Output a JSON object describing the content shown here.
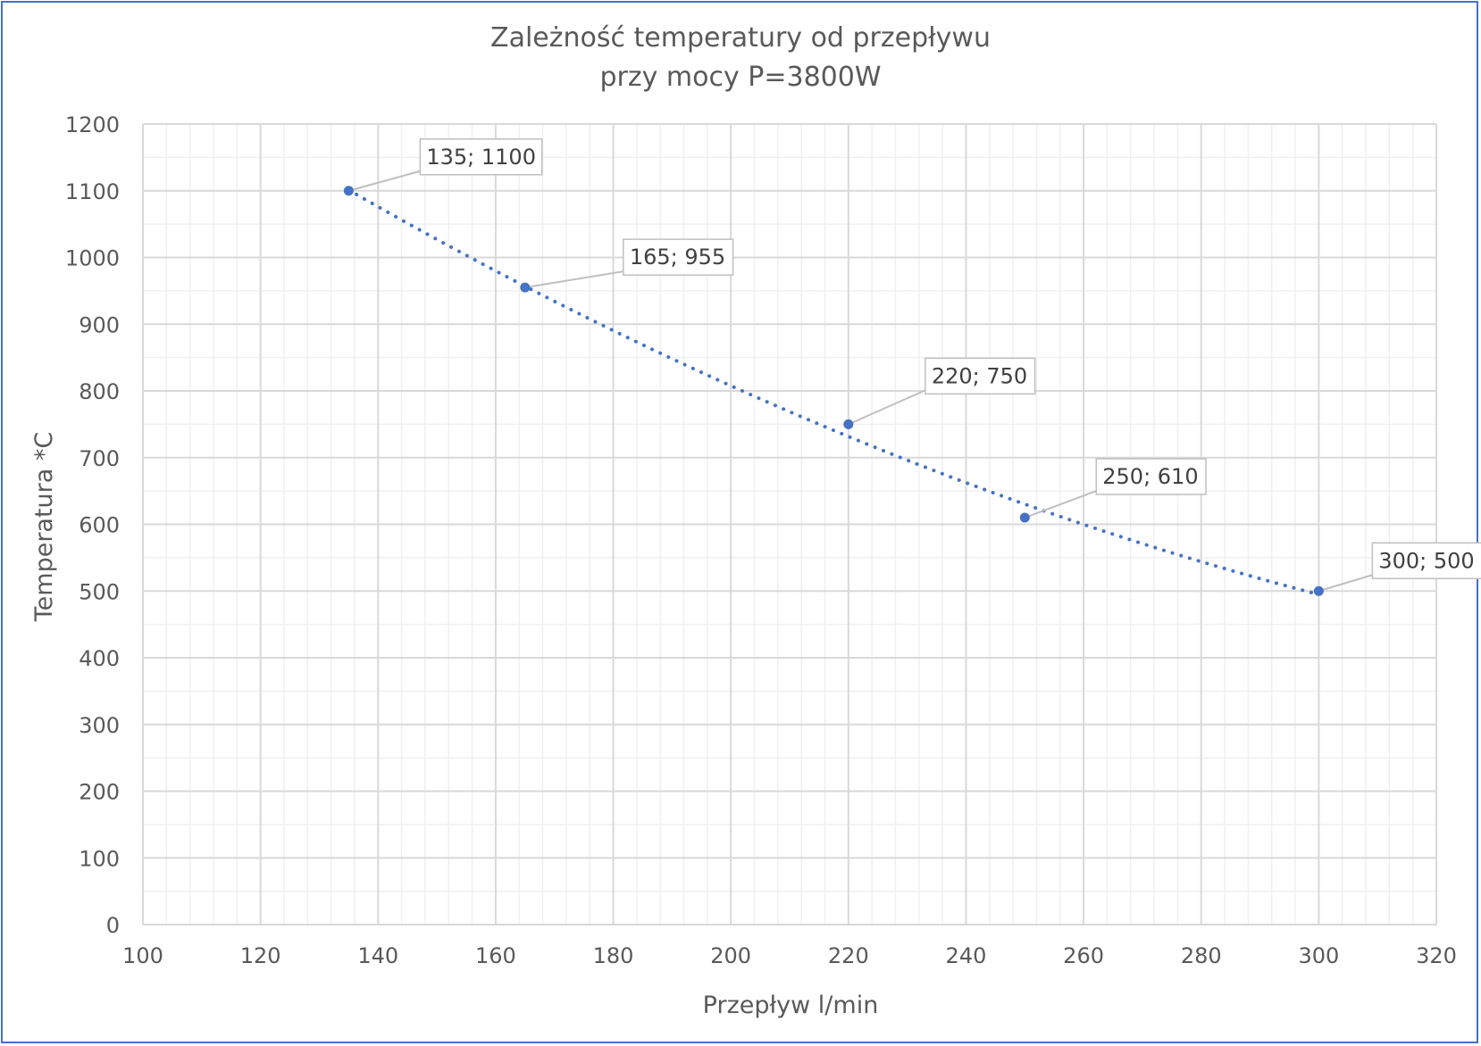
{
  "chart_data": {
    "type": "scatter",
    "title": "Zależność temperatury  od przepływu",
    "subtitle": "przy mocy P=3800W",
    "xlabel": "Przepływ l/min",
    "ylabel": "Temperatura *C",
    "xlim": [
      100,
      320
    ],
    "ylim": [
      0,
      1200
    ],
    "x_ticks": [
      "100",
      "120",
      "140",
      "160",
      "180",
      "200",
      "220",
      "240",
      "260",
      "280",
      "300",
      "320"
    ],
    "y_ticks": [
      "0",
      "100",
      "200",
      "300",
      "400",
      "500",
      "600",
      "700",
      "800",
      "900",
      "1000",
      "1100",
      "1200"
    ],
    "grid": true,
    "minor_grid": true,
    "trendline": "dotted polynomial",
    "series": [
      {
        "x": [
          135,
          165,
          220,
          250,
          300
        ],
        "y": [
          1100,
          955,
          750,
          610,
          500
        ],
        "data_labels": [
          "135; 1100",
          "165; 955",
          "220; 750",
          "250; 610",
          "300; 500"
        ],
        "color": "#4472C4"
      }
    ]
  }
}
